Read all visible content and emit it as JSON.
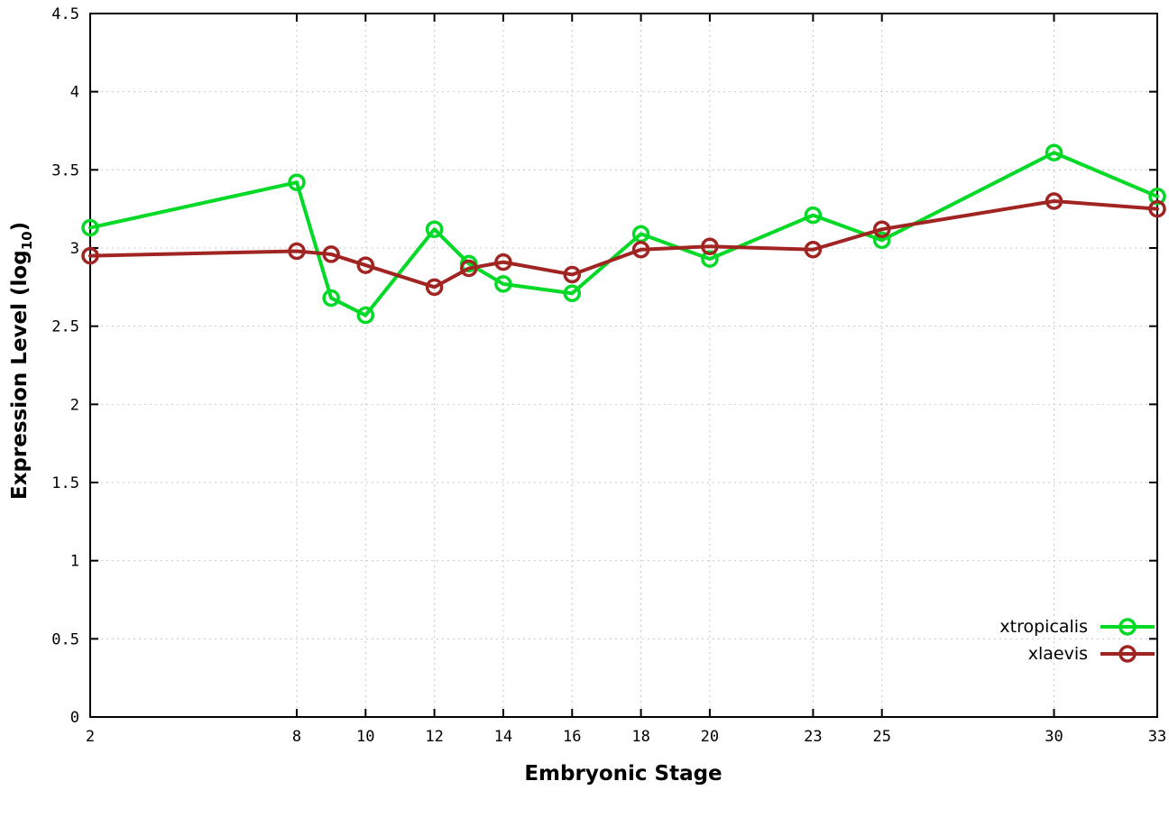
{
  "chart_data": {
    "type": "line",
    "title": "",
    "xlabel": "Embryonic Stage",
    "ylabel": {
      "main": "Expression Level (log",
      "sub": "10",
      "end": ")"
    },
    "xlim": [
      2,
      33
    ],
    "ylim": [
      0,
      4.5
    ],
    "grid": true,
    "legend_position": "bottom-right",
    "x_ticks": [
      2,
      8,
      10,
      12,
      14,
      16,
      18,
      20,
      23,
      25,
      30,
      33
    ],
    "y_ticks": [
      0,
      0.5,
      1,
      1.5,
      2,
      2.5,
      3,
      3.5,
      4,
      4.5
    ],
    "y_tick_labels": [
      "0",
      "0.5",
      "1",
      "1.5",
      "2",
      "2.5",
      "3",
      "3.5",
      "4",
      "4.5"
    ],
    "x": [
      2,
      8,
      9,
      10,
      12,
      13,
      14,
      16,
      18,
      20,
      23,
      25,
      30,
      33
    ],
    "series": [
      {
        "name": "xtropicalis",
        "color": "#00d926",
        "values": [
          3.13,
          3.42,
          2.68,
          2.57,
          3.12,
          2.9,
          2.77,
          2.71,
          3.09,
          2.93,
          3.21,
          3.05,
          3.61,
          3.33
        ]
      },
      {
        "name": "xlaevis",
        "color": "#a02421",
        "values": [
          2.95,
          2.98,
          2.96,
          2.89,
          2.75,
          2.87,
          2.91,
          2.83,
          2.99,
          3.01,
          2.99,
          3.12,
          3.3,
          3.25
        ]
      }
    ],
    "colors": {
      "grid": "#c9c9c9",
      "border": "#000000",
      "background": "#ffffff"
    }
  }
}
